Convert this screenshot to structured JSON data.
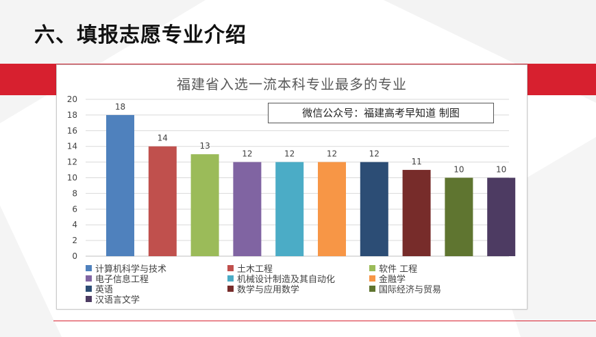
{
  "slide": {
    "title": "六、填报志愿专业介绍"
  },
  "colors": {
    "accent": "#d7202f",
    "grid": "#d9d9d9",
    "axis_text": "#404040"
  },
  "chart_data": {
    "type": "bar",
    "title": "福建省入选一流本科专业最多的专业",
    "watermark": "微信公众号：福建高考早知道 制图",
    "categories": [
      "计算机科学与技术",
      "土木工程",
      "软件工程",
      "电子信息工程",
      "机械设计制造及其自动化",
      "金融学",
      "英语",
      "数学与应用数学",
      "国际经济与贸易",
      "汉语言文学"
    ],
    "values": [
      18,
      14,
      13,
      12,
      12,
      12,
      12,
      11,
      10,
      10
    ],
    "colors": [
      "#4f81bd",
      "#c0504d",
      "#9bbb59",
      "#8064a2",
      "#4bacc6",
      "#f79646",
      "#2c4d75",
      "#772c2a",
      "#5f7530",
      "#4d3b62"
    ],
    "legend_labels": [
      "计算机科学与技术",
      "土木工程",
      "软件  工程",
      "电子信息工程",
      "机械设计制造及其自动化",
      "金融学",
      "英语",
      "数学与应用数学",
      "国际经济与贸易",
      "汉语言文学"
    ],
    "ylim": [
      0,
      20
    ],
    "yticks": [
      0,
      2,
      4,
      6,
      8,
      10,
      12,
      14,
      16,
      18,
      20
    ],
    "grid": true,
    "legend_position": "bottom",
    "data_labels": true
  }
}
